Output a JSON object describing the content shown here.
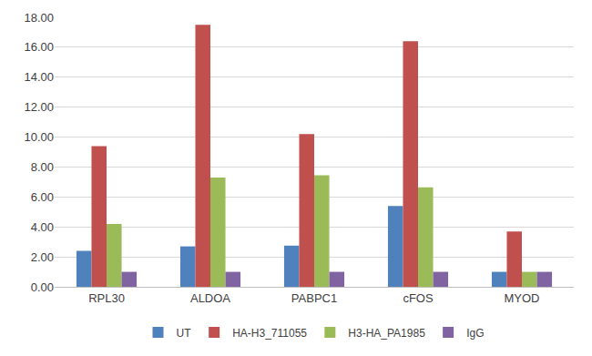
{
  "chart_data": {
    "type": "bar",
    "categories": [
      "RPL30",
      "ALDOA",
      "PABPC1",
      "cFOS",
      "MYOD"
    ],
    "series": [
      {
        "name": "UT",
        "color": "#4f81bd",
        "values": [
          2.4,
          2.7,
          2.75,
          5.4,
          1.0
        ]
      },
      {
        "name": "HA-H3_711055",
        "color": "#c0504d",
        "values": [
          9.4,
          17.5,
          10.2,
          16.4,
          3.7
        ]
      },
      {
        "name": "H3-HA_PA1985",
        "color": "#9bbb59",
        "values": [
          4.2,
          7.3,
          7.45,
          6.65,
          1.0
        ]
      },
      {
        "name": "IgG",
        "color": "#8064a2",
        "values": [
          1.0,
          1.0,
          1.0,
          1.0,
          1.0
        ]
      }
    ],
    "ylim": [
      0,
      18
    ],
    "yticks": [
      {
        "value": 0,
        "label": "0.00"
      },
      {
        "value": 2,
        "label": "2.00"
      },
      {
        "value": 4,
        "label": "4.00"
      },
      {
        "value": 6,
        "label": "6.00"
      },
      {
        "value": 8,
        "label": "8.00"
      },
      {
        "value": 10,
        "label": "10.00"
      },
      {
        "value": 12,
        "label": "12.00"
      },
      {
        "value": 14,
        "label": "14.00"
      },
      {
        "value": 16,
        "label": "16.00"
      },
      {
        "value": 18,
        "label": "18.00"
      }
    ],
    "grid": true,
    "legend": "bottom"
  }
}
